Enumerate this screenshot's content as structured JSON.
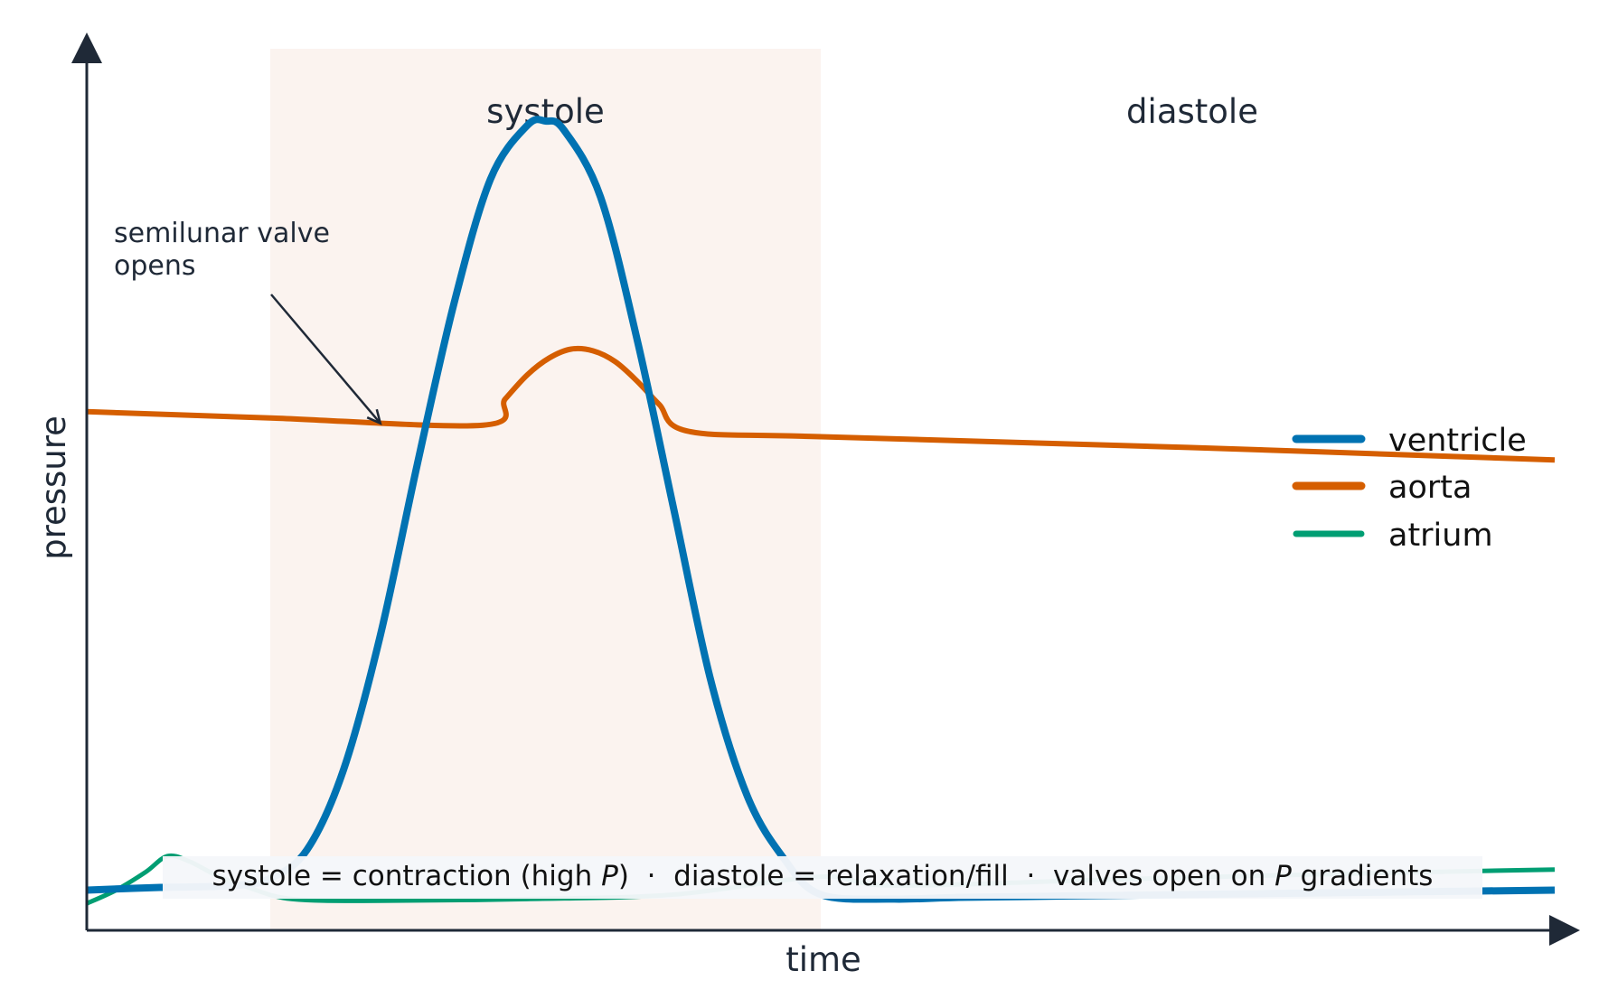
{
  "chart_data": {
    "type": "line",
    "title": "",
    "xlabel": "time",
    "ylabel": "pressure",
    "xlim": [
      0,
      1
    ],
    "ylim": [
      0,
      1
    ],
    "grid": false,
    "legend_position": "right",
    "regions": [
      {
        "label": "systole",
        "x": [
          0.125,
          0.5
        ],
        "color": "#fbf3ef"
      },
      {
        "label": "diastole",
        "x": [
          0.5,
          1.0
        ]
      }
    ],
    "series": [
      {
        "name": "ventricle",
        "color": "#0072b2",
        "x": [
          0,
          0.05,
          0.1,
          0.125,
          0.15,
          0.175,
          0.2,
          0.225,
          0.25,
          0.275,
          0.3,
          0.3125,
          0.325,
          0.35,
          0.375,
          0.4,
          0.425,
          0.45,
          0.475,
          0.5,
          0.55,
          0.6,
          0.7,
          0.8,
          0.9,
          1.0
        ],
        "values": [
          0.045,
          0.048,
          0.05,
          0.058,
          0.09,
          0.18,
          0.33,
          0.52,
          0.7,
          0.84,
          0.9,
          0.905,
          0.895,
          0.82,
          0.66,
          0.47,
          0.28,
          0.15,
          0.08,
          0.04,
          0.035,
          0.037,
          0.039,
          0.041,
          0.043,
          0.045
        ]
      },
      {
        "name": "aorta",
        "color": "#d55e00",
        "x": [
          0,
          0.125,
          0.27,
          0.285,
          0.3,
          0.315,
          0.33,
          0.345,
          0.36,
          0.375,
          0.39,
          0.41,
          0.5,
          0.75,
          1.0
        ],
        "values": [
          0.58,
          0.573,
          0.565,
          0.594,
          0.621,
          0.64,
          0.65,
          0.648,
          0.636,
          0.614,
          0.588,
          0.558,
          0.552,
          0.54,
          0.526
        ]
      },
      {
        "name": "atrium",
        "color": "#009e73",
        "x": [
          0,
          0.02,
          0.04,
          0.055,
          0.07,
          0.09,
          0.11,
          0.14,
          0.2,
          0.3,
          0.4,
          0.5,
          0.55,
          0.7,
          0.85,
          1.0
        ],
        "values": [
          0.03,
          0.045,
          0.065,
          0.083,
          0.077,
          0.06,
          0.048,
          0.035,
          0.033,
          0.035,
          0.04,
          0.06,
          0.05,
          0.057,
          0.063,
          0.068
        ]
      }
    ],
    "annotations": [
      {
        "text_lines": [
          "semilunar valve",
          "opens"
        ],
        "arrow_to": {
          "x": 0.2,
          "y": 0.567
        }
      }
    ],
    "caption": {
      "prefix": "systole = contraction (high ",
      "p1": "P",
      "middle": ")  ·  diastole = relaxation/fill  ·  valves open on ",
      "p2": "P",
      "suffix": " gradients"
    }
  }
}
